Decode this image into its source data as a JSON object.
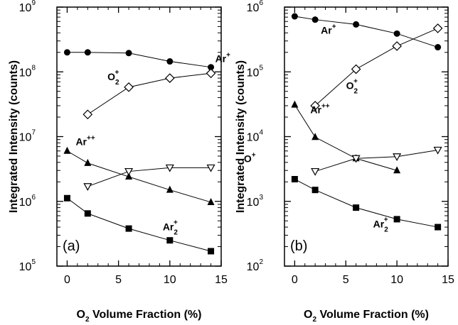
{
  "chart_data": [
    {
      "type": "scatter",
      "panel_label": "(a)",
      "xlabel": "O2 Volume Fraction (%)",
      "ylabel": "Integrated Intensity (counts)",
      "xlim": [
        -1,
        15
      ],
      "ylim": [
        100000,
        1000000000
      ],
      "yscale": "log",
      "xticks": [
        0,
        5,
        10,
        15
      ],
      "yticks": [
        100000,
        1000000,
        10000000,
        100000000,
        1000000000
      ],
      "ytick_labels": [
        {
          "base": "10",
          "exp": "5"
        },
        {
          "base": "10",
          "exp": "6"
        },
        {
          "base": "10",
          "exp": "7"
        },
        {
          "base": "10",
          "exp": "8"
        },
        {
          "base": "10",
          "exp": "9"
        }
      ],
      "grid": false,
      "series": [
        {
          "name": "Ar+",
          "label": {
            "main": "Ar",
            "sup": "+",
            "sub": ""
          },
          "marker": "filled-circle",
          "x": [
            0,
            2,
            6,
            10,
            14
          ],
          "y": [
            200000000,
            200000000,
            195000000,
            145000000,
            118000000
          ]
        },
        {
          "name": "O2+",
          "label": {
            "main": "O",
            "sup": "+",
            "sub": "2"
          },
          "marker": "open-diamond",
          "x": [
            2,
            6,
            10,
            14
          ],
          "y": [
            22000000,
            58000000,
            80000000,
            95000000
          ]
        },
        {
          "name": "Ar++",
          "label": {
            "main": "Ar",
            "sup": "++",
            "sub": ""
          },
          "marker": "filled-triangle",
          "x": [
            0,
            2,
            6,
            10,
            14
          ],
          "y": [
            6000000,
            3900000,
            2400000,
            1500000,
            970000
          ]
        },
        {
          "name": "O+",
          "label": {
            "main": "O",
            "sup": "+",
            "sub": ""
          },
          "marker": "open-triangle-down",
          "x": [
            2,
            6,
            10,
            14
          ],
          "y": [
            1700000,
            2900000,
            3300000,
            3300000
          ]
        },
        {
          "name": "Ar2+",
          "label": {
            "main": "Ar",
            "sup": "+",
            "sub": "2"
          },
          "marker": "filled-square",
          "x": [
            0,
            2,
            6,
            10,
            14
          ],
          "y": [
            1120000,
            650000,
            380000,
            250000,
            170000
          ]
        }
      ]
    },
    {
      "type": "scatter",
      "panel_label": "(b)",
      "xlabel": "O2 Volume Fraction (%)",
      "ylabel": "Integrated Intensity (counts)",
      "xlim": [
        -1,
        15
      ],
      "ylim": [
        100,
        1000000
      ],
      "yscale": "log",
      "xticks": [
        0,
        5,
        10,
        15
      ],
      "yticks": [
        100,
        1000,
        10000,
        100000,
        1000000
      ],
      "ytick_labels": [
        {
          "base": "10",
          "exp": "2"
        },
        {
          "base": "10",
          "exp": "3"
        },
        {
          "base": "10",
          "exp": "4"
        },
        {
          "base": "10",
          "exp": "5"
        },
        {
          "base": "10",
          "exp": "6"
        }
      ],
      "grid": false,
      "series": [
        {
          "name": "Ar+",
          "label": {
            "main": "Ar",
            "sup": "+",
            "sub": ""
          },
          "marker": "filled-circle",
          "x": [
            0,
            2,
            6,
            10,
            14
          ],
          "y": [
            720000,
            640000,
            540000,
            390000,
            240000
          ]
        },
        {
          "name": "O2+",
          "label": {
            "main": "O",
            "sup": "+",
            "sub": "2"
          },
          "marker": "open-diamond",
          "x": [
            2,
            6,
            10,
            14
          ],
          "y": [
            30000,
            110000,
            250000,
            470000
          ]
        },
        {
          "name": "Ar++",
          "label": {
            "main": "Ar",
            "sup": "++",
            "sub": ""
          },
          "marker": "filled-triangle",
          "x": [
            0,
            2,
            6,
            10
          ],
          "y": [
            31000,
            9800,
            4600,
            3000
          ]
        },
        {
          "name": "O+",
          "label": {
            "main": "O",
            "sup": "+",
            "sub": ""
          },
          "marker": "open-triangle-down",
          "x": [
            2,
            6,
            10,
            14
          ],
          "y": [
            2900,
            4600,
            4900,
            6200
          ]
        },
        {
          "name": "Ar2+",
          "label": {
            "main": "Ar",
            "sup": "+",
            "sub": "2"
          },
          "marker": "filled-square",
          "x": [
            0,
            2,
            6,
            10,
            14
          ],
          "y": [
            2200,
            1500,
            800,
            530,
            400
          ]
        }
      ]
    }
  ]
}
